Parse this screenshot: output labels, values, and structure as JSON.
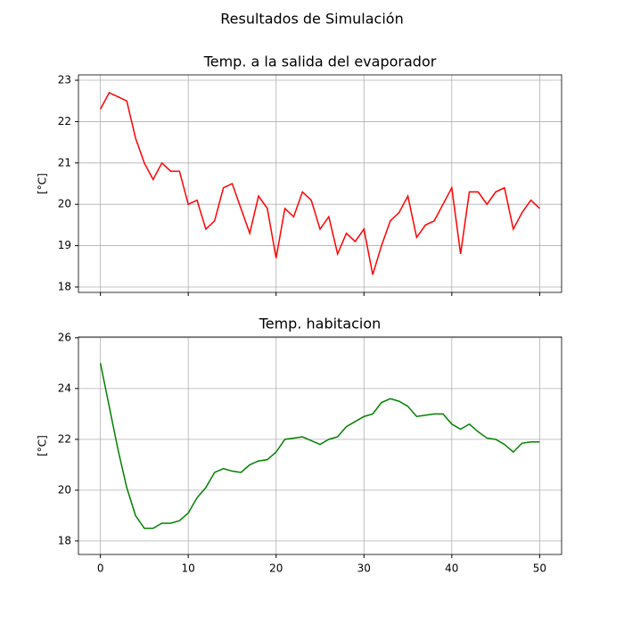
{
  "title": "Resultados de Simulación",
  "chart_data": [
    {
      "type": "line",
      "title": "Temp. a la salida del evaporador",
      "y_label": "[°C]",
      "x": [
        0,
        1,
        2,
        3,
        4,
        5,
        6,
        7,
        8,
        9,
        10,
        11,
        12,
        13,
        14,
        15,
        16,
        17,
        18,
        19,
        20,
        21,
        22,
        23,
        24,
        25,
        26,
        27,
        28,
        29,
        30,
        31,
        32,
        33,
        34,
        35,
        36,
        37,
        38,
        39,
        40,
        41,
        42,
        43,
        44,
        45,
        46,
        47,
        48,
        49,
        50
      ],
      "series": [
        {
          "name": "Temp. a la salida del evaporador",
          "color": "#ff0000",
          "values": [
            22.3,
            22.7,
            22.6,
            22.5,
            21.6,
            21.0,
            20.6,
            21.0,
            20.8,
            20.8,
            20.0,
            20.1,
            19.4,
            19.6,
            20.4,
            20.5,
            19.9,
            19.3,
            20.2,
            19.9,
            18.7,
            19.9,
            19.7,
            20.3,
            20.1,
            19.4,
            19.7,
            18.8,
            19.3,
            19.1,
            19.4,
            18.3,
            19.0,
            19.6,
            19.8,
            20.2,
            19.2,
            19.5,
            19.6,
            20.0,
            20.4,
            18.8,
            20.3,
            20.3,
            20.0,
            20.3,
            20.4,
            19.4,
            19.8,
            20.1,
            19.9
          ]
        }
      ],
      "xlim": [
        -2.5,
        52.5
      ],
      "ylim": [
        17.87,
        23.13
      ],
      "xticks": [
        0,
        10,
        20,
        30,
        40,
        50
      ],
      "yticks": [
        18,
        19,
        20,
        21,
        22,
        23
      ],
      "show_xtick_labels": false,
      "grid": true
    },
    {
      "type": "line",
      "title": "Temp. habitacion",
      "y_label": "[°C]",
      "x": [
        0,
        1,
        2,
        3,
        4,
        5,
        6,
        7,
        8,
        9,
        10,
        11,
        12,
        13,
        14,
        15,
        16,
        17,
        18,
        19,
        20,
        21,
        22,
        23,
        24,
        25,
        26,
        27,
        28,
        29,
        30,
        31,
        32,
        33,
        34,
        35,
        36,
        37,
        38,
        39,
        40,
        41,
        42,
        43,
        44,
        45,
        46,
        47,
        48,
        49,
        50
      ],
      "series": [
        {
          "name": "Temp. habitacion",
          "color": "#008000",
          "values": [
            25.0,
            23.3,
            21.6,
            20.1,
            19.0,
            18.5,
            18.5,
            18.7,
            18.7,
            18.8,
            19.1,
            19.7,
            20.1,
            20.7,
            20.85,
            20.75,
            20.7,
            21.0,
            21.15,
            21.2,
            21.5,
            22.0,
            22.05,
            22.1,
            21.95,
            21.8,
            22.0,
            22.1,
            22.5,
            22.7,
            22.9,
            23.0,
            23.45,
            23.6,
            23.5,
            23.3,
            22.9,
            22.95,
            23.0,
            23.0,
            22.6,
            22.4,
            22.6,
            22.3,
            22.05,
            22.0,
            21.8,
            21.5,
            21.85,
            21.9,
            21.9
          ]
        }
      ],
      "xlim": [
        -2.5,
        52.5
      ],
      "ylim": [
        17.47,
        26.03
      ],
      "xticks": [
        0,
        10,
        20,
        30,
        40,
        50
      ],
      "yticks": [
        18,
        20,
        22,
        24,
        26
      ],
      "show_xtick_labels": true,
      "grid": true
    }
  ]
}
